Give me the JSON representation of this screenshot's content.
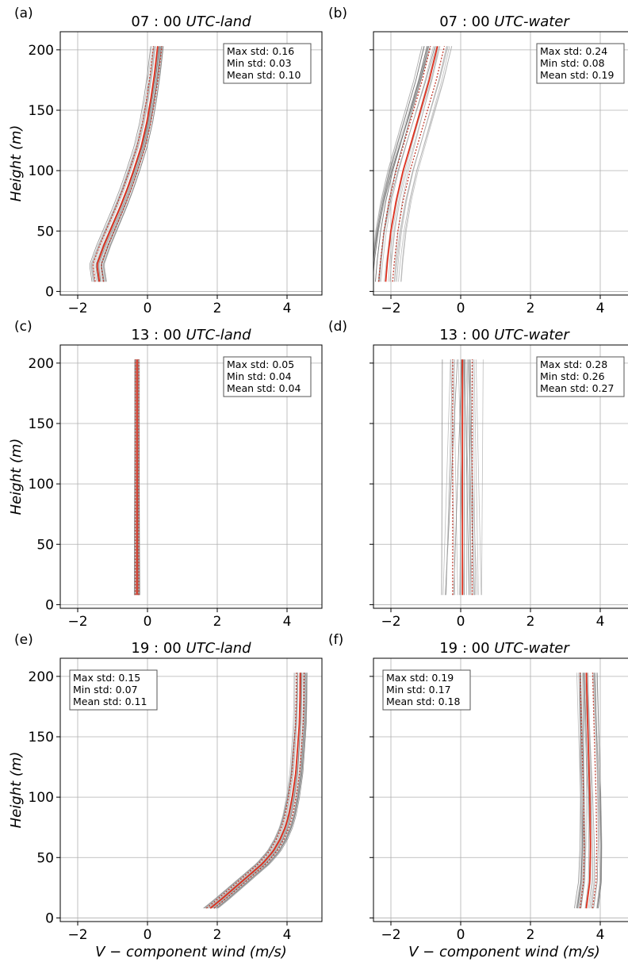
{
  "figure": {
    "xlabel": "V − component wind (m/s)",
    "ylabel": "Height (m)"
  },
  "chart_data": [
    {
      "type": "line",
      "panel_label": "(a)",
      "title_time": "07 : 00",
      "title_site": "UTC-land",
      "xlim": [
        -2.5,
        5
      ],
      "ylim": [
        -3,
        215
      ],
      "xticks": [
        -2,
        0,
        2,
        4
      ],
      "yticks": [
        0,
        50,
        100,
        150,
        200
      ],
      "grid": true,
      "stats_position": "top-right",
      "stats": [
        "Max std: 0.16",
        "Min std: 0.03",
        "Mean std: 0.10"
      ],
      "height": [
        8,
        22,
        38,
        55,
        70,
        85,
        100,
        120,
        140,
        160,
        180,
        205
      ],
      "mean": [
        -1.38,
        -1.45,
        -1.25,
        -1.0,
        -0.78,
        -0.58,
        -0.4,
        -0.18,
        -0.02,
        0.1,
        0.2,
        0.3
      ],
      "std_band": 0.12,
      "ensemble_spread": 0.22,
      "ensemble_members": 24
    },
    {
      "type": "line",
      "panel_label": "(b)",
      "title_time": "07 : 00",
      "title_site": "UTC-water",
      "xlim": [
        -2.5,
        5
      ],
      "ylim": [
        -3,
        215
      ],
      "xticks": [
        -2,
        0,
        2,
        4
      ],
      "yticks": [
        0,
        50,
        100,
        150,
        200
      ],
      "grid": true,
      "stats_position": "top-right",
      "stats": [
        "Max std: 0.24",
        "Min std: 0.08",
        "Mean std: 0.19"
      ],
      "height": [
        8,
        25,
        50,
        75,
        100,
        125,
        150,
        175,
        205
      ],
      "mean": [
        -2.15,
        -2.1,
        -2.0,
        -1.85,
        -1.65,
        -1.4,
        -1.15,
        -0.9,
        -0.65
      ],
      "std_band": 0.2,
      "ensemble_spread": 0.45,
      "ensemble_members": 24
    },
    {
      "type": "line",
      "panel_label": "(c)",
      "title_time": "13 : 00",
      "title_site": "UTC-land",
      "xlim": [
        -2.5,
        5
      ],
      "ylim": [
        -3,
        215
      ],
      "xticks": [
        -2,
        0,
        2,
        4
      ],
      "yticks": [
        0,
        50,
        100,
        150,
        200
      ],
      "grid": true,
      "stats_position": "top-right",
      "stats": [
        "Max std: 0.05",
        "Min std: 0.04",
        "Mean std: 0.04"
      ],
      "height": [
        8,
        50,
        100,
        150,
        205
      ],
      "mean": [
        -0.3,
        -0.3,
        -0.3,
        -0.3,
        -0.3
      ],
      "std_band": 0.05,
      "ensemble_spread": 0.08,
      "ensemble_members": 20
    },
    {
      "type": "line",
      "panel_label": "(d)",
      "title_time": "13 : 00",
      "title_site": "UTC-water",
      "xlim": [
        -2.5,
        5
      ],
      "ylim": [
        -3,
        215
      ],
      "xticks": [
        -2,
        0,
        2,
        4
      ],
      "yticks": [
        0,
        50,
        100,
        150,
        200
      ],
      "grid": true,
      "stats_position": "top-right",
      "stats": [
        "Max std: 0.28",
        "Min std: 0.26",
        "Mean std: 0.27"
      ],
      "height": [
        8,
        50,
        100,
        150,
        205
      ],
      "mean": [
        0.05,
        0.05,
        0.05,
        0.05,
        0.05
      ],
      "std_band": 0.28,
      "ensemble_spread": 0.6,
      "ensemble_members": 26
    },
    {
      "type": "line",
      "panel_label": "(e)",
      "title_time": "19 : 00",
      "title_site": "UTC-land",
      "xlim": [
        -2.5,
        5
      ],
      "ylim": [
        -3,
        215
      ],
      "xticks": [
        -2,
        0,
        2,
        4
      ],
      "yticks": [
        0,
        50,
        100,
        150,
        200
      ],
      "grid": true,
      "stats_position": "top-left",
      "stats": [
        "Max std: 0.15",
        "Min std: 0.07",
        "Mean std: 0.11"
      ],
      "height": [
        8,
        15,
        25,
        35,
        45,
        55,
        65,
        75,
        85,
        100,
        120,
        140,
        160,
        180,
        205
      ],
      "mean": [
        1.8,
        2.1,
        2.5,
        2.9,
        3.3,
        3.6,
        3.8,
        3.95,
        4.05,
        4.15,
        4.25,
        4.3,
        4.35,
        4.37,
        4.38
      ],
      "std_band": 0.11,
      "ensemble_spread": 0.22,
      "ensemble_members": 24
    },
    {
      "type": "line",
      "panel_label": "(f)",
      "title_time": "19 : 00",
      "title_site": "UTC-water",
      "xlim": [
        -2.5,
        5
      ],
      "ylim": [
        -3,
        215
      ],
      "xticks": [
        -2,
        0,
        2,
        4
      ],
      "yticks": [
        0,
        50,
        100,
        150,
        200
      ],
      "grid": true,
      "stats_position": "top-left",
      "stats": [
        "Max std: 0.19",
        "Min std: 0.17",
        "Mean std: 0.18"
      ],
      "height": [
        8,
        30,
        60,
        100,
        150,
        205
      ],
      "mean": [
        3.6,
        3.7,
        3.72,
        3.7,
        3.65,
        3.6
      ],
      "std_band": 0.18,
      "ensemble_spread": 0.35,
      "ensemble_members": 24
    }
  ]
}
